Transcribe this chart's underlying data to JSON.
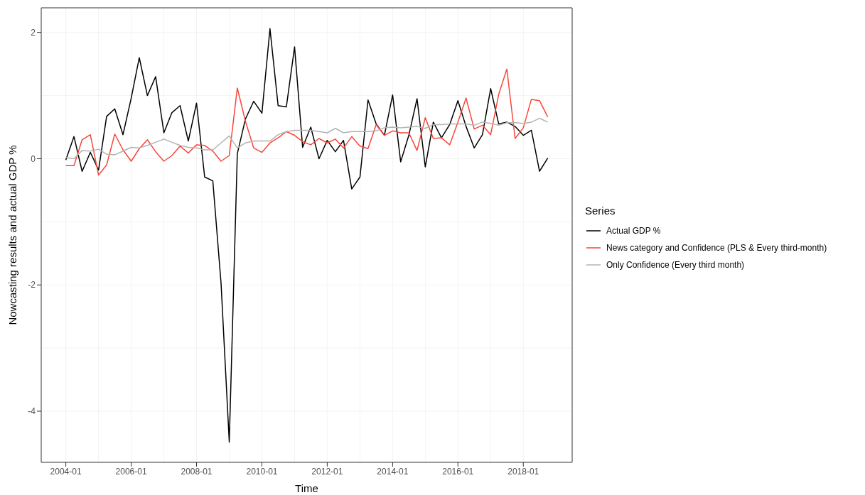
{
  "chart_data": {
    "type": "line",
    "xlabel": "Time",
    "ylabel": "Nowcasting results and actual GDP %",
    "legend_title": "Series",
    "x": [
      "2004-01",
      "2004-04",
      "2004-07",
      "2004-10",
      "2005-01",
      "2005-04",
      "2005-07",
      "2005-10",
      "2006-01",
      "2006-04",
      "2006-07",
      "2006-10",
      "2007-01",
      "2007-04",
      "2007-07",
      "2007-10",
      "2008-01",
      "2008-04",
      "2008-07",
      "2008-10",
      "2009-01",
      "2009-04",
      "2009-07",
      "2009-10",
      "2010-01",
      "2010-04",
      "2010-07",
      "2010-10",
      "2011-01",
      "2011-04",
      "2011-07",
      "2011-10",
      "2012-01",
      "2012-04",
      "2012-07",
      "2012-10",
      "2013-01",
      "2013-04",
      "2013-07",
      "2013-10",
      "2014-01",
      "2014-04",
      "2014-07",
      "2014-10",
      "2015-01",
      "2015-04",
      "2015-07",
      "2015-10",
      "2016-01",
      "2016-04",
      "2016-07",
      "2016-10",
      "2017-01",
      "2017-04",
      "2017-07",
      "2017-10",
      "2018-01",
      "2018-04",
      "2018-07",
      "2018-10"
    ],
    "series": [
      {
        "name": "Actual GDP %",
        "color": "#000000",
        "values": [
          -0.02,
          0.35,
          -0.2,
          0.1,
          -0.18,
          0.67,
          0.79,
          0.38,
          0.96,
          1.6,
          1.0,
          1.3,
          0.41,
          0.73,
          0.84,
          0.28,
          0.88,
          -0.29,
          -0.35,
          -1.97,
          -4.49,
          0.08,
          0.63,
          0.91,
          0.72,
          2.06,
          0.84,
          0.82,
          1.77,
          0.18,
          0.5,
          0.0,
          0.29,
          0.11,
          0.29,
          -0.48,
          -0.29,
          0.93,
          0.55,
          0.37,
          1.01,
          -0.05,
          0.37,
          0.95,
          -0.13,
          0.58,
          0.33,
          0.54,
          0.92,
          0.51,
          0.17,
          0.38,
          1.11,
          0.55,
          0.58,
          0.51,
          0.37,
          0.45,
          -0.2,
          0.01
        ]
      },
      {
        "name": "News category and Confidence (PLS & Every third-month)",
        "color": "#f8463a",
        "values": [
          -0.11,
          -0.11,
          0.3,
          0.38,
          -0.26,
          -0.1,
          0.39,
          0.14,
          -0.04,
          0.16,
          0.3,
          0.11,
          -0.04,
          0.05,
          0.2,
          0.09,
          0.22,
          0.21,
          0.12,
          -0.04,
          0.05,
          1.12,
          0.59,
          0.17,
          0.1,
          0.25,
          0.33,
          0.43,
          0.37,
          0.27,
          0.22,
          0.32,
          0.25,
          0.31,
          0.17,
          0.35,
          0.2,
          0.16,
          0.54,
          0.37,
          0.44,
          0.41,
          0.41,
          0.13,
          0.65,
          0.32,
          0.33,
          0.22,
          0.58,
          0.96,
          0.47,
          0.53,
          0.38,
          1.02,
          1.42,
          0.32,
          0.49,
          0.94,
          0.92,
          0.66
        ]
      },
      {
        "name": "Only Confidence (Every third month)",
        "color": "#b3b3b3",
        "values": [
          0.02,
          0.0,
          0.13,
          0.12,
          0.15,
          0.07,
          0.06,
          0.12,
          0.18,
          0.17,
          0.21,
          0.26,
          0.31,
          0.26,
          0.21,
          0.18,
          0.17,
          0.14,
          0.14,
          0.25,
          0.36,
          0.17,
          0.25,
          0.28,
          0.28,
          0.28,
          0.38,
          0.43,
          0.45,
          0.45,
          0.45,
          0.43,
          0.41,
          0.48,
          0.41,
          0.43,
          0.43,
          0.43,
          0.44,
          0.49,
          0.5,
          0.49,
          0.5,
          0.51,
          0.48,
          0.54,
          0.54,
          0.55,
          0.55,
          0.55,
          0.53,
          0.58,
          0.56,
          0.53,
          0.57,
          0.57,
          0.56,
          0.58,
          0.64,
          0.58
        ]
      }
    ],
    "xlim": [
      "2003-04",
      "2019-07"
    ],
    "xticks": [
      "2004-01",
      "2006-01",
      "2008-01",
      "2010-01",
      "2012-01",
      "2014-01",
      "2016-01",
      "2018-01"
    ],
    "ylim": [
      -4.81,
      2.39
    ],
    "yticks": [
      -4,
      -2,
      0,
      2
    ],
    "grid": true,
    "legend": "right",
    "marker": "none",
    "line_style": "solid"
  }
}
